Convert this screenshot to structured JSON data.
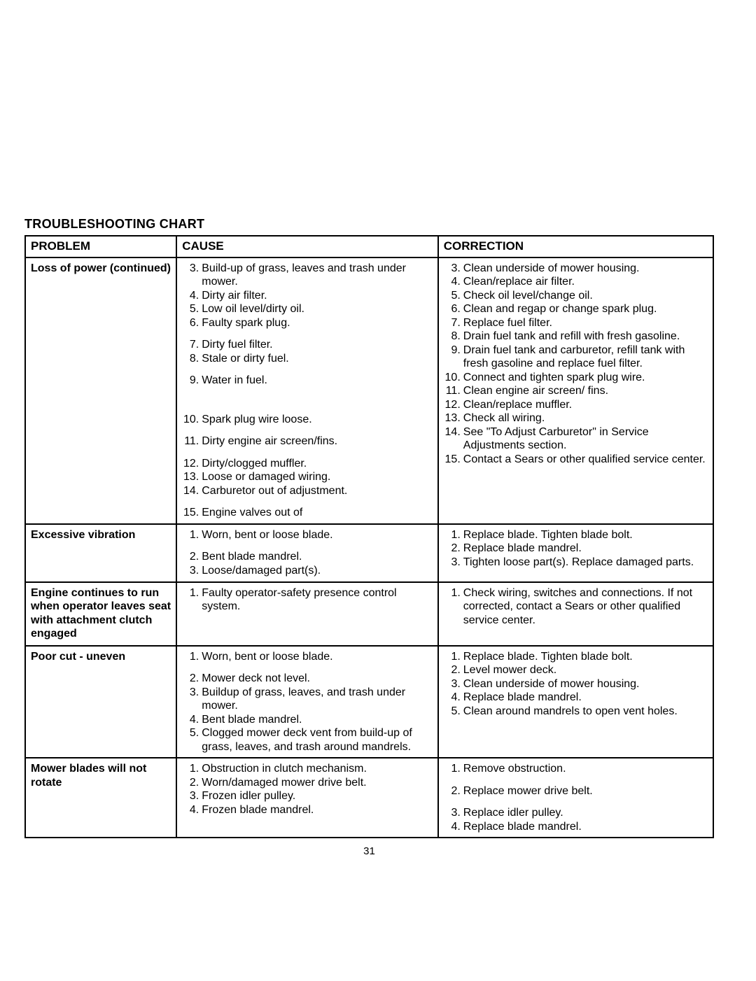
{
  "title": "TROUBLESHOOTING CHART",
  "headers": {
    "problem": "PROBLEM",
    "cause": "CAUSE",
    "correction": "CORRECTION"
  },
  "page_number": "31",
  "rows": [
    {
      "problem": "Loss of power (continued)",
      "causes": [
        {
          "n": "3.",
          "t": "Build-up of grass, leaves and trash under mower."
        },
        {
          "n": "4.",
          "t": "Dirty air filter."
        },
        {
          "n": "5.",
          "t": "Low oil level/dirty oil."
        },
        {
          "n": "6.",
          "t": "Faulty spark plug."
        }
      ],
      "causes2": [
        {
          "n": "7.",
          "t": "Dirty fuel filter."
        },
        {
          "n": "8.",
          "t": "Stale or dirty fuel."
        }
      ],
      "causes3": [
        {
          "n": "9.",
          "t": "Water in fuel."
        }
      ],
      "causes4": [
        {
          "n": "10.",
          "t": "Spark plug wire loose."
        }
      ],
      "causes5": [
        {
          "n": "11.",
          "t": "Dirty engine air screen/fins."
        }
      ],
      "causes6": [
        {
          "n": "12.",
          "t": "Dirty/clogged muffler."
        },
        {
          "n": "13.",
          "t": "Loose or damaged wiring."
        },
        {
          "n": "14.",
          "t": "Carburetor out of adjustment."
        }
      ],
      "causes7": [
        {
          "n": "15.",
          "t": "Engine valves out of"
        }
      ],
      "corrections": [
        {
          "n": "3.",
          "t": "Clean underside of mower housing."
        },
        {
          "n": "4.",
          "t": "Clean/replace air filter."
        },
        {
          "n": "5.",
          "t": "Check oil level/change oil."
        },
        {
          "n": "6.",
          "t": "Clean and regap or change spark plug."
        },
        {
          "n": "7.",
          "t": "Replace fuel filter."
        },
        {
          "n": "8.",
          "t": "Drain fuel tank and refill with fresh gasoline."
        },
        {
          "n": "9.",
          "t": "Drain fuel tank and carburetor, refill tank with fresh gasoline and replace fuel filter."
        },
        {
          "n": "10.",
          "t": "Connect and tighten spark plug wire."
        },
        {
          "n": "11.",
          "t": "Clean engine air screen/ fins."
        },
        {
          "n": "12.",
          "t": "Clean/replace muffler."
        },
        {
          "n": "13.",
          "t": "Check all wiring."
        },
        {
          "n": "14.",
          "t": "See \"To Adjust Carburetor\" in Service Adjustments section."
        },
        {
          "n": "15.",
          "t": "Contact a Sears or other qualified service center."
        }
      ]
    },
    {
      "problem": "Excessive vibration",
      "causes": [
        {
          "n": "1.",
          "t": "Worn, bent or loose blade."
        }
      ],
      "causes2": [
        {
          "n": "2.",
          "t": "Bent blade mandrel."
        },
        {
          "n": "3.",
          "t": "Loose/damaged part(s)."
        }
      ],
      "corrections": [
        {
          "n": "1.",
          "t": "Replace blade. Tighten blade bolt."
        },
        {
          "n": "2.",
          "t": "Replace blade mandrel."
        },
        {
          "n": "3.",
          "t": "Tighten loose part(s). Replace damaged parts."
        }
      ]
    },
    {
      "problem": "Engine continues to run when operator leaves seat with attachment clutch engaged",
      "causes": [
        {
          "n": "1.",
          "t": "Faulty operator-safety presence control system."
        }
      ],
      "corrections": [
        {
          "n": "1.",
          "t": "Check wiring, switches and connections. If not corrected, contact a Sears or other qualified service center."
        }
      ]
    },
    {
      "problem": "Poor cut - uneven",
      "causes": [
        {
          "n": "1.",
          "t": "Worn, bent or loose blade."
        }
      ],
      "causes2": [
        {
          "n": "2.",
          "t": "Mower deck not level."
        },
        {
          "n": "3.",
          "t": "Buildup of grass, leaves, and trash under mower."
        },
        {
          "n": "4.",
          "t": "Bent blade mandrel."
        },
        {
          "n": "5.",
          "t": "Clogged mower deck vent from build-up of grass, leaves, and trash around mandrels."
        }
      ],
      "corrections": [
        {
          "n": "1.",
          "t": "Replace blade.  Tighten blade bolt."
        },
        {
          "n": "2.",
          "t": "Level mower deck."
        },
        {
          "n": "3.",
          "t": "Clean underside of mower housing."
        },
        {
          "n": "4.",
          "t": "Replace blade mandrel."
        },
        {
          "n": "5.",
          "t": "Clean around mandrels to open vent holes."
        }
      ]
    },
    {
      "problem": "Mower blades will not rotate",
      "causes": [
        {
          "n": "1.",
          "t": "Obstruction in clutch mechanism."
        },
        {
          "n": "2.",
          "t": "Worn/damaged mower drive belt."
        },
        {
          "n": "3.",
          "t": "Frozen idler pulley."
        },
        {
          "n": "4.",
          "t": "Frozen blade mandrel."
        }
      ],
      "corrections": [
        {
          "n": "1.",
          "t": "Remove obstruction."
        }
      ],
      "corrections2": [
        {
          "n": "2.",
          "t": "Replace mower drive belt."
        }
      ],
      "corrections3": [
        {
          "n": "3.",
          "t": "Replace idler pulley."
        },
        {
          "n": "4.",
          "t": "Replace blade mandrel."
        }
      ]
    }
  ]
}
